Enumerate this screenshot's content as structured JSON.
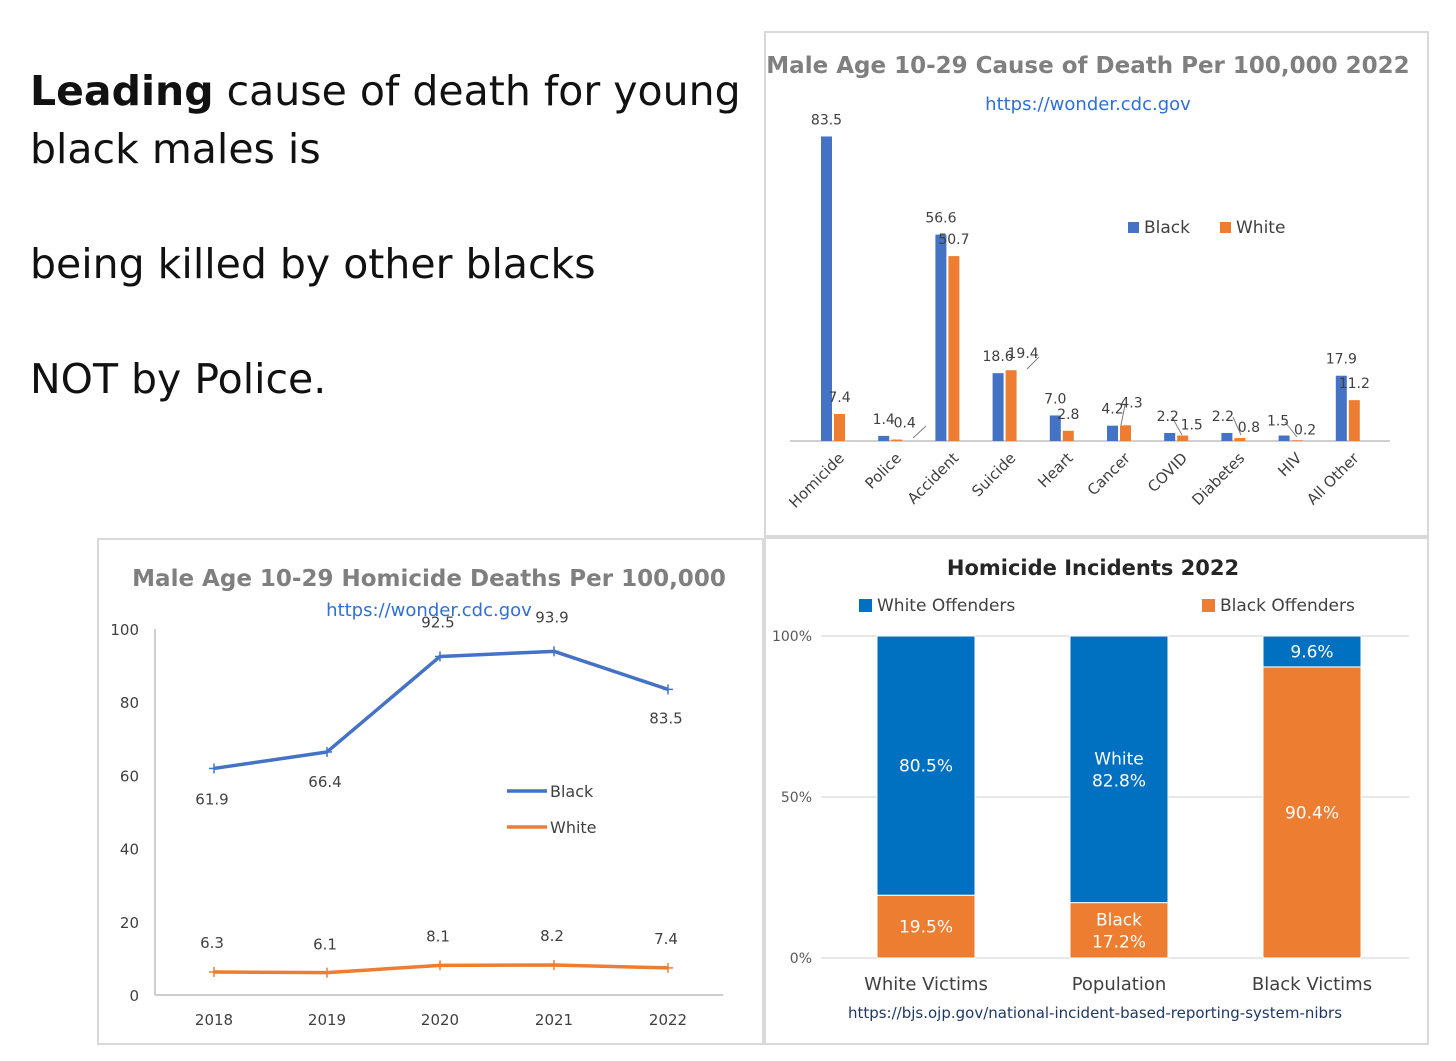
{
  "headline": {
    "bold_word": "Leading",
    "line1_rest": " cause of death for young",
    "line2": "black males is",
    "line3": "being killed by other blacks",
    "line4": "NOT by Police."
  },
  "colors": {
    "black": "#4472c4",
    "white": "#ed7d31",
    "offender_white": "#0070c0",
    "offender_black": "#ed7d31",
    "title_gray": "#7f7f7f",
    "link": "#2f6fd6"
  },
  "chart_data": [
    {
      "type": "bar",
      "title": "Male Age 10-29 Cause of Death Per 100,000 2022",
      "subtitle": "https://wonder.cdc.gov",
      "categories": [
        "Homicide",
        "Police",
        "Accident",
        "Suicide",
        "Heart",
        "Cancer",
        "COVID",
        "Diabetes",
        "HIV",
        "All Other"
      ],
      "series": [
        {
          "name": "Black",
          "values": [
            83.5,
            1.4,
            56.6,
            18.6,
            7.0,
            4.2,
            2.2,
            2.2,
            1.5,
            17.9
          ],
          "labels": [
            "83.5",
            "1.4",
            "56.6",
            "18.6",
            "7.0",
            "4.2",
            "2.2",
            "2.2",
            "1.5",
            "17.9"
          ]
        },
        {
          "name": "White",
          "values": [
            7.4,
            0.4,
            50.7,
            19.4,
            2.8,
            4.3,
            1.5,
            0.8,
            0.2,
            11.2
          ],
          "labels": [
            "7.4",
            "0.4",
            "50.7",
            "19.4",
            "2.8",
            "4.3",
            "1.5",
            "0.8",
            "0.2",
            "11.2"
          ]
        }
      ],
      "ylim": [
        0,
        85
      ],
      "legend": "top-right"
    },
    {
      "type": "line",
      "title": "Male Age 10-29 Homicide Deaths Per 100,000",
      "subtitle": "https://wonder.cdc.gov",
      "x": [
        "2018",
        "2019",
        "2020",
        "2021",
        "2022"
      ],
      "series": [
        {
          "name": "Black",
          "values": [
            61.9,
            66.4,
            92.5,
            93.9,
            83.5
          ],
          "labels": [
            "61.9",
            "66.4",
            "92.5",
            "93.9",
            "83.5"
          ]
        },
        {
          "name": "White",
          "values": [
            6.3,
            6.1,
            8.1,
            8.2,
            7.4
          ],
          "labels": [
            "6.3",
            "6.1",
            "8.1",
            "8.2",
            "7.4"
          ]
        }
      ],
      "ylim": [
        0,
        100
      ],
      "yticks": [
        "0",
        "20",
        "40",
        "60",
        "80",
        "100"
      ],
      "legend": "center-right"
    },
    {
      "type": "bar",
      "stacked": true,
      "title": "Homicide Incidents 2022",
      "categories": [
        "White Victims",
        "Population",
        "Black Victims"
      ],
      "series": [
        {
          "name": "White Offenders",
          "values": [
            80.5,
            82.8,
            9.6
          ],
          "labels": [
            "80.5%",
            "White\n82.8%",
            "9.6%"
          ]
        },
        {
          "name": "Black Offenders",
          "values": [
            19.5,
            17.2,
            90.4
          ],
          "labels": [
            "19.5%",
            "Black\n17.2%",
            "90.4%"
          ]
        }
      ],
      "ylim": [
        0,
        100
      ],
      "yticks": [
        "0%",
        "50%",
        "100%"
      ],
      "source": "https://bjs.ojp.gov/national-incident-based-reporting-system-nibrs",
      "legend": "top"
    }
  ]
}
